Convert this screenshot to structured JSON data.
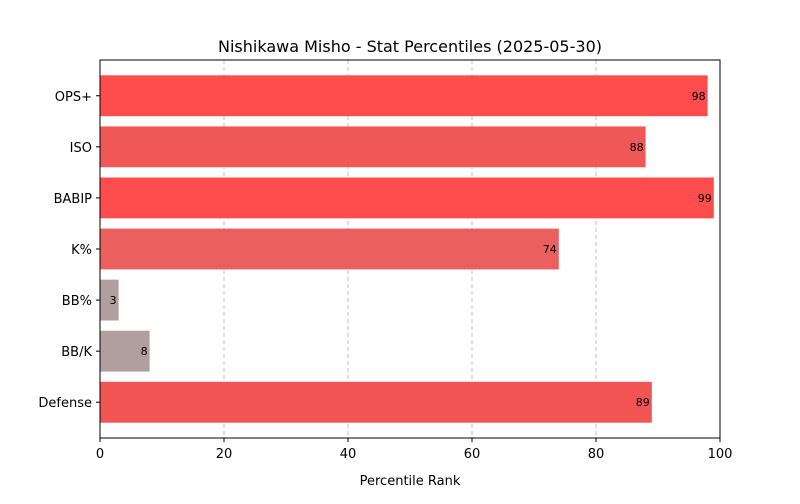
{
  "chart_data": {
    "type": "bar",
    "orientation": "horizontal",
    "title": "Nishikawa Misho - Stat Percentiles (2025-05-30)",
    "xlabel": "Percentile Rank",
    "ylabel": "",
    "xlim": [
      0,
      100
    ],
    "xticks": [
      0,
      20,
      40,
      60,
      80,
      100
    ],
    "grid": "x-dashed",
    "categories": [
      "OPS+",
      "ISO",
      "BABIP",
      "K%",
      "BB%",
      "BB/K",
      "Defense"
    ],
    "values": [
      98,
      88,
      99,
      74,
      3,
      8,
      89
    ],
    "colors": [
      "#ff4d4d",
      "#f05858",
      "#ff4d4d",
      "#eb5f5f",
      "#b09f9f",
      "#b09f9f",
      "#f25353"
    ]
  }
}
